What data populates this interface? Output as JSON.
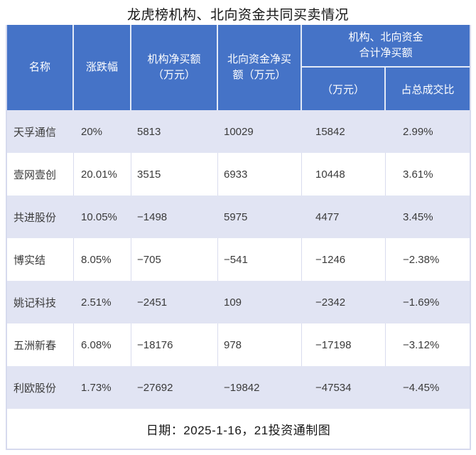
{
  "title": "龙虎榜机构、北向资金共同买卖情况",
  "colors": {
    "header_bg": "#4573C7",
    "header_text": "#FFFFFF",
    "row_alt_bg": "#E1E4F3",
    "row_bg": "#FFFFFF",
    "outer_border": "#D6DAEE",
    "cell_border": "#D9DCEE",
    "body_text": "#3A3A3A"
  },
  "table": {
    "headers": {
      "name": "名称",
      "change": "涨跌幅",
      "inst_net_buy_lines": [
        "机构净买额",
        "（万元）"
      ],
      "north_net_buy_lines": [
        "北向资金净买",
        "额（万元）"
      ],
      "combined_group_lines": [
        "机构、北向资金",
        "合计净买额"
      ],
      "combined_amount": "（万元）",
      "combined_ratio": "占总成交比"
    },
    "rows": [
      {
        "name": "天孚通信",
        "change": "20%",
        "inst": "5813",
        "north": "10029",
        "total": "15842",
        "ratio": "2.99%"
      },
      {
        "name": "壹网壹创",
        "change": "20.01%",
        "inst": "3515",
        "north": "6933",
        "total": "10448",
        "ratio": "3.61%"
      },
      {
        "name": "共进股份",
        "change": "10.05%",
        "inst": "−1498",
        "north": "5975",
        "total": "4477",
        "ratio": "3.45%"
      },
      {
        "name": "博实结",
        "change": "8.05%",
        "inst": "−705",
        "north": "−541",
        "total": "−1246",
        "ratio": "−2.38%"
      },
      {
        "name": "姚记科技",
        "change": "2.51%",
        "inst": "−2451",
        "north": "109",
        "total": "−2342",
        "ratio": "−1.69%"
      },
      {
        "name": "五洲新春",
        "change": "6.08%",
        "inst": "−18176",
        "north": "978",
        "total": "−17198",
        "ratio": "−3.12%"
      },
      {
        "name": "利欧股份",
        "change": "1.73%",
        "inst": "−27692",
        "north": "−19842",
        "total": "−47534",
        "ratio": "−4.45%"
      }
    ]
  },
  "footer": {
    "note": "日期：2025-1-16，21投资通制图"
  },
  "chart_data": {
    "type": "table",
    "title": "龙虎榜机构、北向资金共同买卖情况",
    "columns": [
      "名称",
      "涨跌幅",
      "机构净买额（万元）",
      "北向资金净买额（万元）",
      "机构、北向资金合计净买额（万元）",
      "机构、北向资金合计净买额占总成交比"
    ],
    "rows": [
      [
        "天孚通信",
        "20%",
        5813,
        10029,
        15842,
        "2.99%"
      ],
      [
        "壹网壹创",
        "20.01%",
        3515,
        6933,
        10448,
        "3.61%"
      ],
      [
        "共进股份",
        "10.05%",
        -1498,
        5975,
        4477,
        "3.45%"
      ],
      [
        "博实结",
        "8.05%",
        -705,
        -541,
        -1246,
        "-2.38%"
      ],
      [
        "姚记科技",
        "2.51%",
        -2451,
        109,
        -2342,
        "-1.69%"
      ],
      [
        "五洲新春",
        "6.08%",
        -18176,
        978,
        -17198,
        "-3.12%"
      ],
      [
        "利欧股份",
        "1.73%",
        -27692,
        -19842,
        -47534,
        "-4.45%"
      ]
    ],
    "note": "日期：2025-1-16，21投资通制图"
  }
}
